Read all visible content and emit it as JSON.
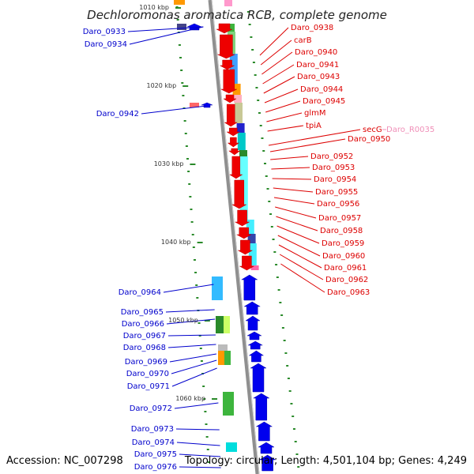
{
  "title": "Dechloromonas aromatica RCB, complete genome",
  "accession_label": "Accession: NC_007298",
  "topology_label": "Topology: circular; Length: 4,501,104 bp; Genes: 4,249",
  "colors": {
    "forward_label": "#dd0000",
    "reverse_label": "#0000cc",
    "rna_label": "#f08fb8",
    "backbone": "#8f8f8f",
    "tick": "#2a8a2a"
  },
  "ticks": [
    {
      "label": "1010 kbp",
      "kbp": 1010
    },
    {
      "label": "1020 kbp",
      "kbp": 1020
    },
    {
      "label": "1030 kbp",
      "kbp": 1030
    },
    {
      "label": "1040 kbp",
      "kbp": 1040
    },
    {
      "label": "1050 kbp",
      "kbp": 1050
    },
    {
      "label": "1060 kbp",
      "kbp": 1060
    }
  ],
  "reverse_genes": [
    "Daro_0933",
    "Daro_0934",
    "Daro_0942",
    "Daro_0964",
    "Daro_0965",
    "Daro_0966",
    "Daro_0967",
    "Daro_0968",
    "Daro_0969",
    "Daro_0970",
    "Daro_0971",
    "Daro_0972",
    "Daro_0973",
    "Daro_0974",
    "Daro_0975",
    "Daro_0976"
  ],
  "forward_genes": [
    "Daro_0938",
    "carB",
    "Daro_0940",
    "Daro_0941",
    "Daro_0943",
    "Daro_0944",
    "Daro_0945",
    "glmM",
    "tpiA",
    "secG",
    "Daro_0950",
    "Daro_0952",
    "Daro_0953",
    "Daro_0954",
    "Daro_0955",
    "Daro_0956",
    "Daro_0957",
    "Daro_0958",
    "Daro_0959",
    "Daro_0960",
    "Daro_0961",
    "Daro_0962",
    "Daro_0963"
  ],
  "rna_genes": [
    "Daro_R0035"
  ]
}
